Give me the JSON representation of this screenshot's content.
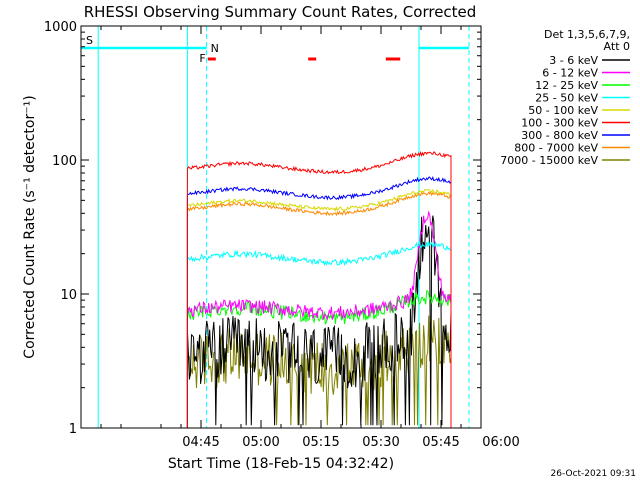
{
  "chart_data": {
    "type": "line",
    "title": "RHESSI Observing Summary Count Rates, Corrected",
    "xlabel": "Start Time (18-Feb-15 04:32:42)",
    "ylabel": "Corrected Count Rate (s⁻¹ detector⁻¹)",
    "y_scale": "log",
    "ylim": [
      1,
      1000
    ],
    "xlim_minutes": [
      -45,
      55
    ],
    "x_ticks": [
      {
        "label": "04:45",
        "min": -15
      },
      {
        "label": "05:00",
        "min": 0
      },
      {
        "label": "05:15",
        "min": 15
      },
      {
        "label": "05:30",
        "min": 30
      },
      {
        "label": "05:45",
        "min": 45
      },
      {
        "label": "06:00",
        "min": 60
      }
    ],
    "y_ticks": [
      {
        "label": "1",
        "value": 1
      },
      {
        "label": "10",
        "value": 10
      },
      {
        "label": "100",
        "value": 100
      },
      {
        "label": "1000",
        "value": 1000
      }
    ],
    "legend_header": [
      "Det 1,3,5,6,7,9,",
      "Att 0"
    ],
    "legend_position": "right",
    "series": [
      {
        "name": "3 - 6 keV",
        "color": "#000000",
        "base": 3.5,
        "hump": 0.4,
        "noise": 0.55,
        "peak": 30
      },
      {
        "name": "6 - 12 keV",
        "color": "#ff00ff",
        "base": 7.5,
        "hump": 0.25,
        "noise": 0.12,
        "peak": 30
      },
      {
        "name": "12 - 25 keV",
        "color": "#00ff00",
        "base": 7.0,
        "hump": 0.35,
        "noise": 0.12,
        "peak": 0
      },
      {
        "name": "25 - 50 keV",
        "color": "#00ffff",
        "base": 18,
        "hump": 0.3,
        "noise": 0.05,
        "peak": 0
      },
      {
        "name": "50 - 100 keV",
        "color": "#d8d800",
        "base": 45,
        "hump": 0.3,
        "noise": 0.03,
        "peak": 0
      },
      {
        "name": "100 - 300 keV",
        "color": "#ff0000",
        "base": 85,
        "hump": 0.32,
        "noise": 0.03,
        "peak": 0
      },
      {
        "name": "300 - 800 keV",
        "color": "#0000ff",
        "base": 55,
        "hump": 0.32,
        "noise": 0.03,
        "peak": 0
      },
      {
        "name": "800 - 7000 keV",
        "color": "#ff8800",
        "base": 42,
        "hump": 0.34,
        "noise": 0.03,
        "peak": 0
      },
      {
        "name": "7000 - 15000 keV",
        "color": "#808000",
        "base": 3.0,
        "hump": 0.4,
        "noise": 0.5,
        "peak": 0
      }
    ],
    "annotations": {
      "S_label": "S",
      "N_label": "N",
      "F_label": "F"
    }
  },
  "footer": {
    "timestamp": "26-Oct-2021 09:31"
  }
}
